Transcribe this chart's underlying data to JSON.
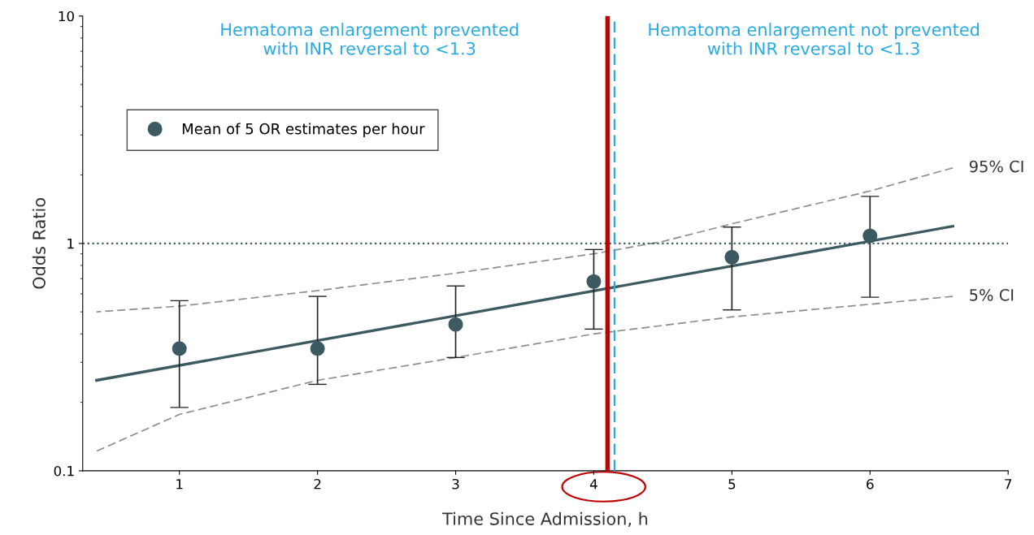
{
  "chart_data": {
    "type": "scatter",
    "xlabel": "Time Since Admission, h",
    "ylabel": "Odds Ratio",
    "log": "y",
    "xlim": [
      0.3,
      7
    ],
    "xticks": [
      1,
      2,
      3,
      4,
      5,
      6,
      7
    ],
    "ylim": [
      0.1,
      10
    ],
    "yticks": [
      0.1,
      1,
      10
    ],
    "grid": false,
    "legend": "top left",
    "annotations": [
      "Hematoma enlargement prevented\nwith INR reversal to <1.3",
      "Hematoma enlargement not prevented\nwith INR reversal to <1.3"
    ],
    "series": [
      {
        "name": "Mean of 5 OR estimates per hour",
        "marker": "circle",
        "color": "#3d5a63",
        "x": [
          1,
          2,
          3,
          4,
          5,
          6
        ],
        "values": [
          0.345,
          0.345,
          0.44,
          0.68,
          0.87,
          1.08
        ],
        "errors": [
          [
            0.19,
            0.56
          ],
          [
            0.24,
            0.585
          ],
          [
            0.315,
            0.65
          ],
          [
            0.42,
            0.94
          ],
          [
            0.51,
            1.18
          ],
          [
            0.58,
            1.61
          ]
        ]
      },
      {
        "type": "line",
        "marker": "none",
        "color": "#3d5a63",
        "line_style": "solid",
        "x": [
          0.4,
          6.6
        ],
        "values": [
          0.25,
          1.19
        ]
      },
      {
        "name": "95% CI",
        "type": "line",
        "marker": "none",
        "color": "#8c8c8c",
        "line_style": "dashed",
        "x": [
          0.4,
          1,
          2,
          3,
          4,
          4.5,
          5,
          6,
          6.6
        ],
        "values": [
          0.5,
          0.53,
          0.62,
          0.74,
          0.9,
          1.02,
          1.22,
          1.7,
          2.15
        ]
      },
      {
        "name": "5% CI",
        "type": "line",
        "marker": "none",
        "color": "#8c8c8c",
        "line_style": "dashed",
        "x": [
          0.4,
          1,
          2,
          3,
          4,
          5,
          6,
          6.6
        ],
        "values": [
          0.122,
          0.177,
          0.25,
          0.315,
          0.4,
          0.475,
          0.54,
          0.585
        ]
      }
    ],
    "ref_lines": [
      {
        "axis": "y",
        "value": 1,
        "color": "#3d5a63",
        "line_style": "dotted"
      },
      {
        "axis": "x",
        "value": 4.1,
        "color": "#c00000",
        "line_style": "solid"
      },
      {
        "axis": "x",
        "value": 4.15,
        "color": "#29abe2",
        "line_style": "dashed"
      }
    ]
  }
}
